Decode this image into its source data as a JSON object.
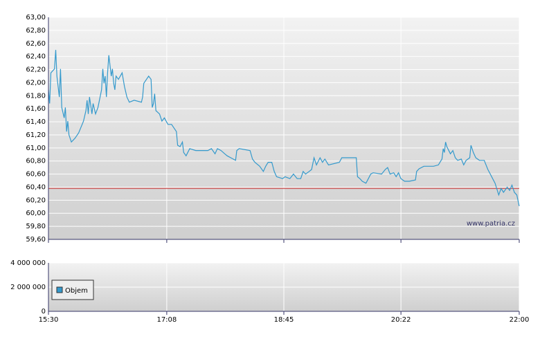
{
  "chart_data": [
    {
      "type": "line",
      "color": "#3399cc",
      "watermark": "www.patria.cz",
      "reference_value": 60.38,
      "reference_color": "#cc4444",
      "ylim": [
        59.6,
        63
      ],
      "xlim": [
        "15:30",
        "22:00"
      ],
      "grid": true,
      "yticks": [
        {
          "value": 59.6,
          "label": "59,60"
        },
        {
          "value": 59.8,
          "label": "59,80"
        },
        {
          "value": 60,
          "label": "60,00"
        },
        {
          "value": 60.2,
          "label": "60,20"
        },
        {
          "value": 60.4,
          "label": "60,40"
        },
        {
          "value": 60.6,
          "label": "60,60"
        },
        {
          "value": 60.8,
          "label": "60,80"
        },
        {
          "value": 61,
          "label": "61,00"
        },
        {
          "value": 61.2,
          "label": "61,20"
        },
        {
          "value": 61.4,
          "label": "61,40"
        },
        {
          "value": 61.6,
          "label": "61,60"
        },
        {
          "value": 61.8,
          "label": "61,80"
        },
        {
          "value": 62,
          "label": "62,00"
        },
        {
          "value": 62.2,
          "label": "62,20"
        },
        {
          "value": 62.4,
          "label": "62,40"
        },
        {
          "value": 62.6,
          "label": "62,60"
        },
        {
          "value": 62.8,
          "label": "62,80"
        },
        {
          "value": 63,
          "label": "63,00"
        }
      ],
      "x": [
        "15:30",
        "15:31",
        "15:32",
        "15:35",
        "15:36",
        "15:37",
        "15:39",
        "15:40",
        "15:41",
        "15:43",
        "15:44",
        "15:45",
        "15:46",
        "15:47",
        "15:49",
        "15:52",
        "15:55",
        "15:59",
        "16:01",
        "16:02",
        "16:03",
        "16:04",
        "16:06",
        "16:07",
        "16:09",
        "16:11",
        "16:14",
        "16:15",
        "16:16",
        "16:17",
        "16:18",
        "16:19",
        "16:20",
        "16:22",
        "16:23",
        "16:24",
        "16:25",
        "16:26",
        "16:28",
        "16:31",
        "16:33",
        "16:35",
        "16:37",
        "16:41",
        "16:47",
        "16:48",
        "16:49",
        "16:53",
        "16:55",
        "16:56",
        "16:57",
        "16:58",
        "16:59",
        "17:02",
        "17:04",
        "17:06",
        "17:09",
        "17:12",
        "17:16",
        "17:17",
        "17:19",
        "17:21",
        "17:22",
        "17:24",
        "17:27",
        "17:32",
        "17:42",
        "17:45",
        "17:48",
        "17:50",
        "17:53",
        "17:56",
        "17:58",
        "18:03",
        "18:05",
        "18:06",
        "18:08",
        "18:17",
        "18:19",
        "18:21",
        "18:25",
        "18:28",
        "18:30",
        "18:32",
        "18:35",
        "18:37",
        "18:39",
        "18:44",
        "18:46",
        "18:50",
        "18:53",
        "18:56",
        "18:59",
        "19:01",
        "19:03",
        "19:06",
        "19:08",
        "19:10",
        "19:12",
        "19:15",
        "19:17",
        "19:19",
        "19:22",
        "19:31",
        "19:33",
        "19:45",
        "19:46",
        "19:48",
        "19:50",
        "19:53",
        "19:55",
        "19:57",
        "19:59",
        "20:06",
        "20:09",
        "20:11",
        "20:13",
        "20:16",
        "20:18",
        "20:20",
        "20:22",
        "20:25",
        "20:29",
        "20:34",
        "20:35",
        "20:37",
        "20:41",
        "20:49",
        "20:53",
        "20:56",
        "20:57",
        "20:58",
        "20:59",
        "21:00",
        "21:03",
        "21:05",
        "21:07",
        "21:09",
        "21:12",
        "21:14",
        "21:16",
        "21:19",
        "21:20",
        "21:22",
        "21:24",
        "21:27",
        "21:31",
        "21:34",
        "21:36",
        "21:38",
        "21:40",
        "21:43",
        "21:45",
        "21:47",
        "21:50",
        "21:52",
        "21:54",
        "21:56",
        "21:58",
        "21:59",
        "22:00"
      ],
      "values": [
        61.89,
        61.68,
        62.15,
        62.21,
        62.5,
        62.1,
        61.78,
        62.21,
        61.62,
        61.46,
        61.62,
        61.25,
        61.41,
        61.2,
        61.09,
        61.15,
        61.23,
        61.41,
        61.57,
        61.73,
        61.52,
        61.78,
        61.52,
        61.68,
        61.52,
        61.62,
        61.89,
        62.21,
        61.99,
        62.1,
        61.78,
        62.15,
        62.42,
        62.1,
        62.21,
        61.99,
        61.89,
        62.1,
        62.05,
        62.15,
        61.94,
        61.78,
        61.7,
        61.73,
        61.7,
        61.78,
        61.99,
        62.1,
        62.05,
        61.62,
        61.68,
        61.83,
        61.57,
        61.52,
        61.41,
        61.46,
        61.36,
        61.36,
        61.25,
        61.04,
        61.02,
        61.09,
        60.93,
        60.88,
        60.99,
        60.96,
        60.96,
        60.99,
        60.91,
        60.99,
        60.96,
        60.91,
        60.88,
        60.83,
        60.81,
        60.96,
        60.99,
        60.96,
        60.83,
        60.78,
        60.72,
        60.64,
        60.72,
        60.78,
        60.78,
        60.64,
        60.56,
        60.53,
        60.56,
        60.53,
        60.6,
        60.53,
        60.53,
        60.64,
        60.6,
        60.64,
        60.67,
        60.85,
        60.74,
        60.85,
        60.78,
        60.83,
        60.74,
        60.78,
        60.85,
        60.85,
        60.56,
        60.53,
        60.49,
        60.46,
        60.53,
        60.6,
        60.62,
        60.6,
        60.67,
        60.7,
        60.6,
        60.62,
        60.56,
        60.62,
        60.53,
        60.49,
        60.49,
        60.51,
        60.64,
        60.68,
        60.72,
        60.72,
        60.74,
        60.83,
        60.99,
        60.93,
        61.09,
        61.02,
        60.91,
        60.96,
        60.85,
        60.81,
        60.83,
        60.74,
        60.81,
        60.85,
        61.04,
        60.93,
        60.85,
        60.81,
        60.81,
        60.67,
        60.6,
        60.53,
        60.46,
        60.28,
        60.38,
        60.32,
        60.4,
        60.35,
        60.43,
        60.32,
        60.28,
        60.19,
        60.11
      ]
    },
    {
      "type": "bar",
      "legend": "top-left",
      "series": [
        {
          "name": "Objem",
          "color": "#3399cc",
          "values": []
        }
      ],
      "ylim": [
        0,
        4000000
      ],
      "yticks": [
        0,
        {
          "value": 2000000,
          "label": "2 000 000"
        },
        {
          "value": 4000000,
          "label": "4 000 000"
        }
      ],
      "xlim": [
        "15:30",
        "22:00"
      ],
      "xticks": [
        "15:30",
        "17:08",
        "18:45",
        "20:22",
        "22:00"
      ],
      "grid": true
    }
  ]
}
